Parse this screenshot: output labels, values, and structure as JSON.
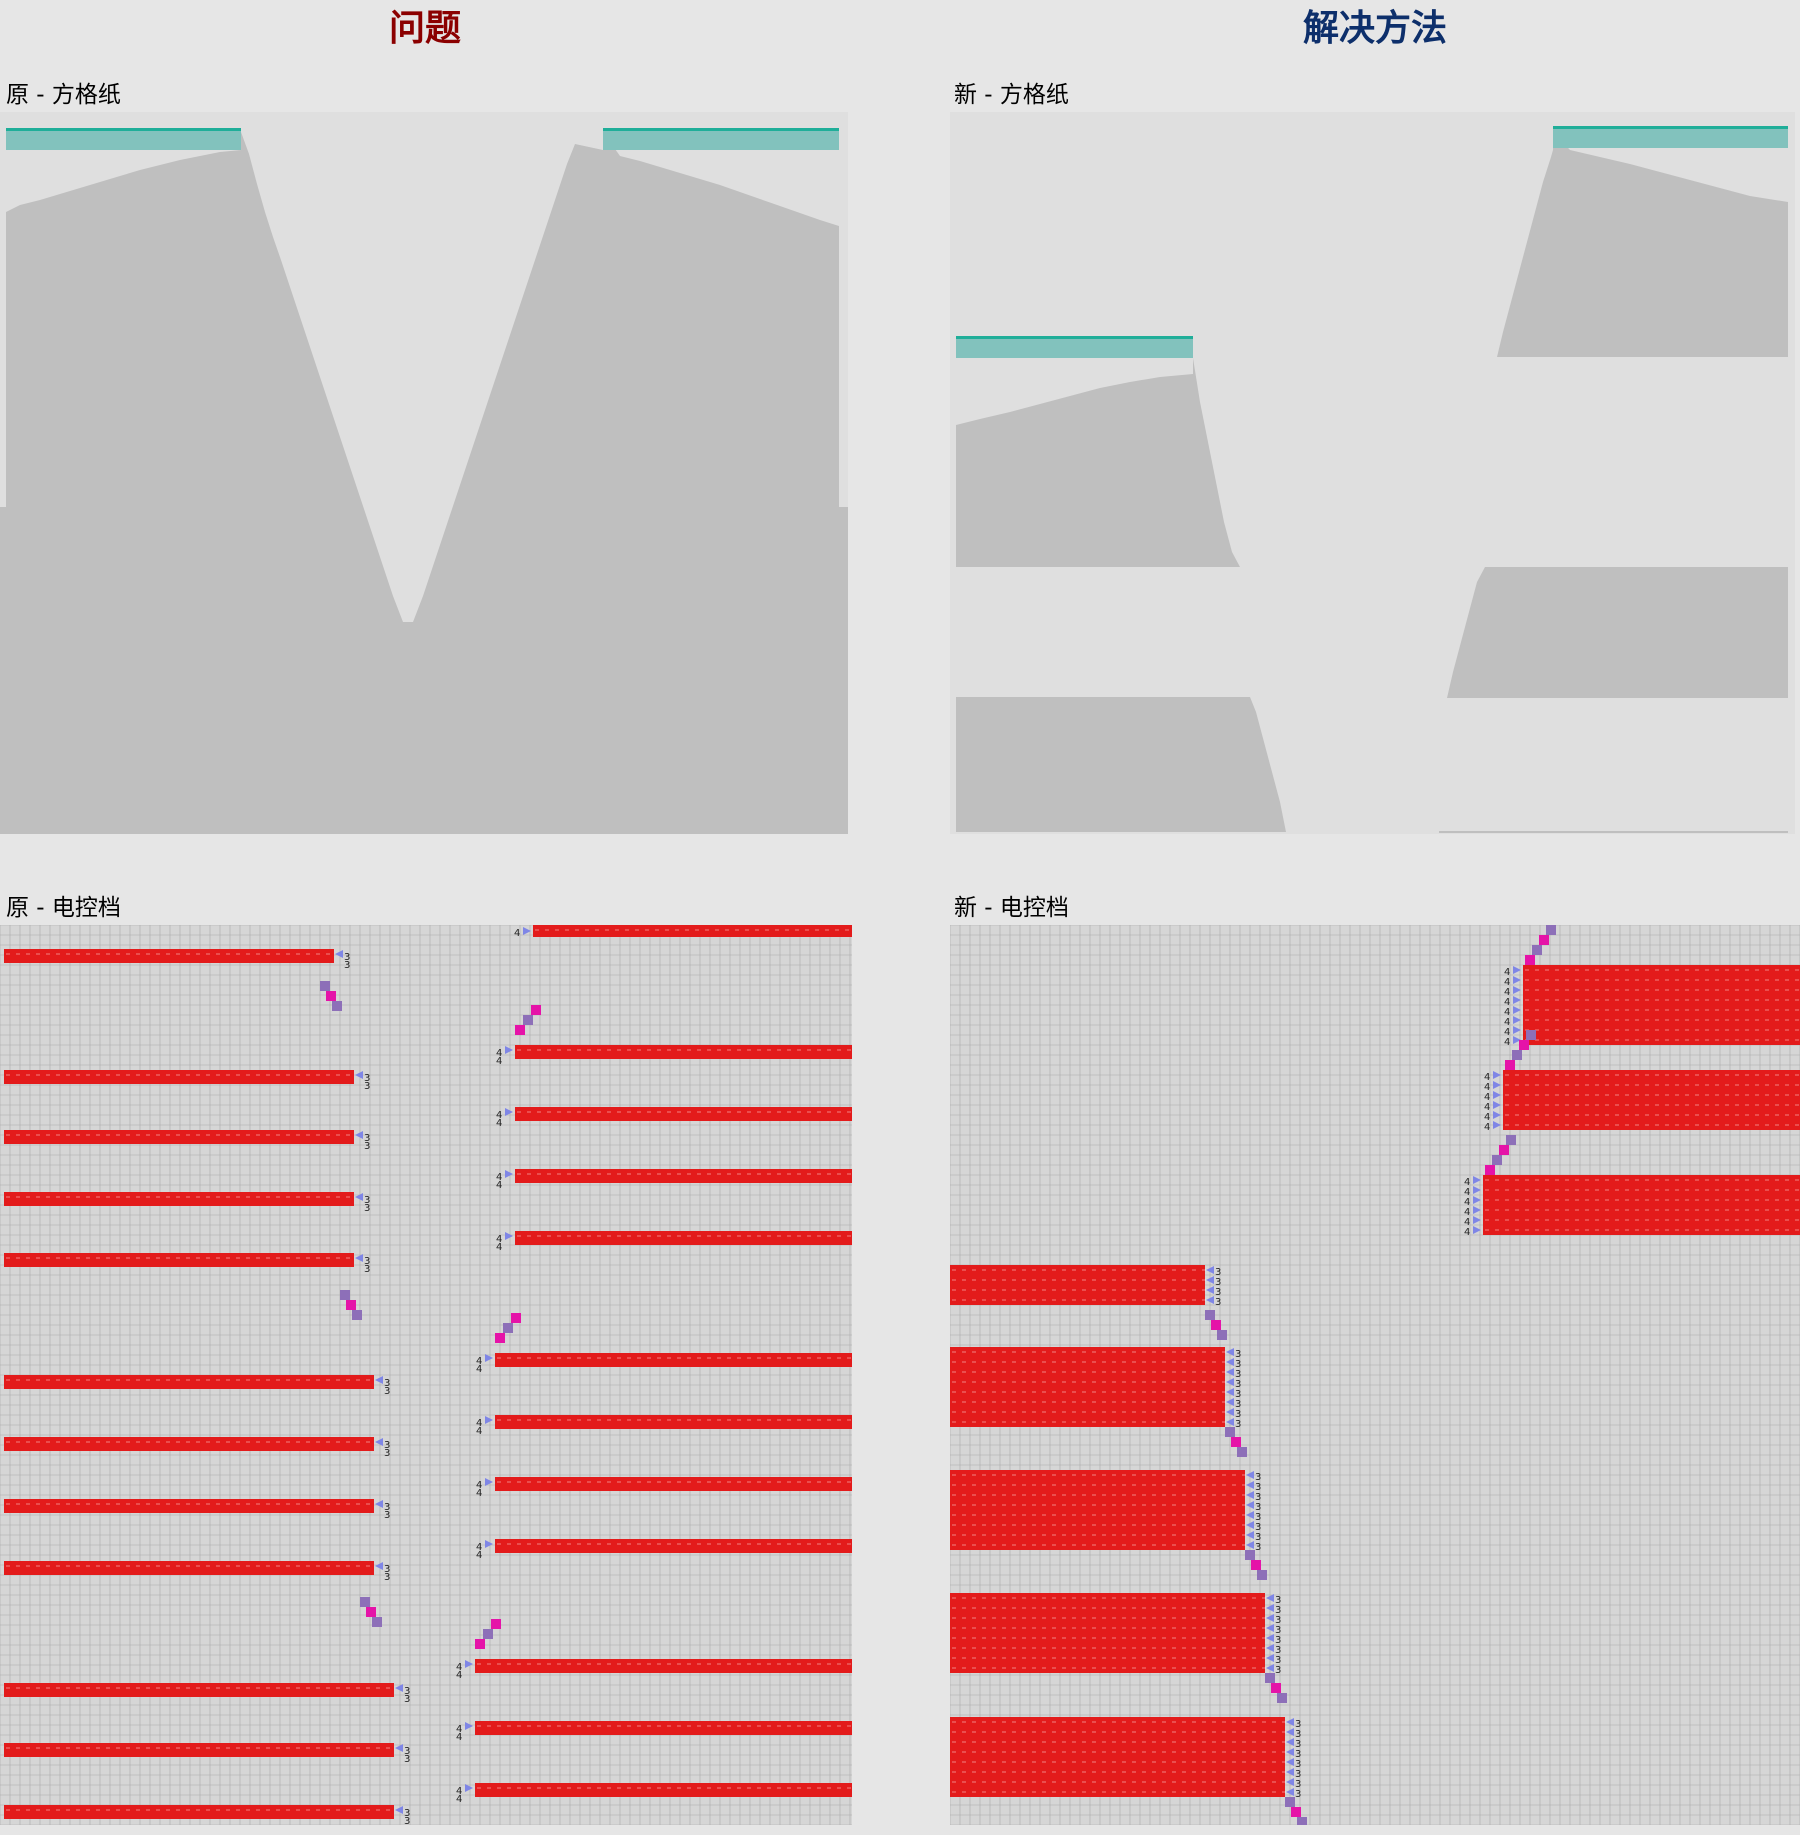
{
  "left": {
    "heading": "问题",
    "heading_color": "#8b0000",
    "graph_label": "原 - 方格纸",
    "knitchart_label": "原 - 电控档"
  },
  "right": {
    "heading": "解决方法",
    "heading_color": "#0d2f6b",
    "graph_label": "新 - 方格纸",
    "knitchart_label": "新 - 电控档"
  },
  "colors": {
    "panel_bg": "#dfdfdf",
    "shape_fill": "#bfbfbf",
    "teal_band": "#82c2bd",
    "teal_edge": "#1fae99",
    "grid_line": "#aaaaaa",
    "grid_bg": "#d6d6d6",
    "stitch_red": "#e31b1b",
    "marker_purple": "#8d6fb8",
    "marker_magenta": "#e513a8",
    "marker_blue": "#7f86e6"
  },
  "marker_digits": {
    "left_side": "4",
    "right_side": "3"
  }
}
